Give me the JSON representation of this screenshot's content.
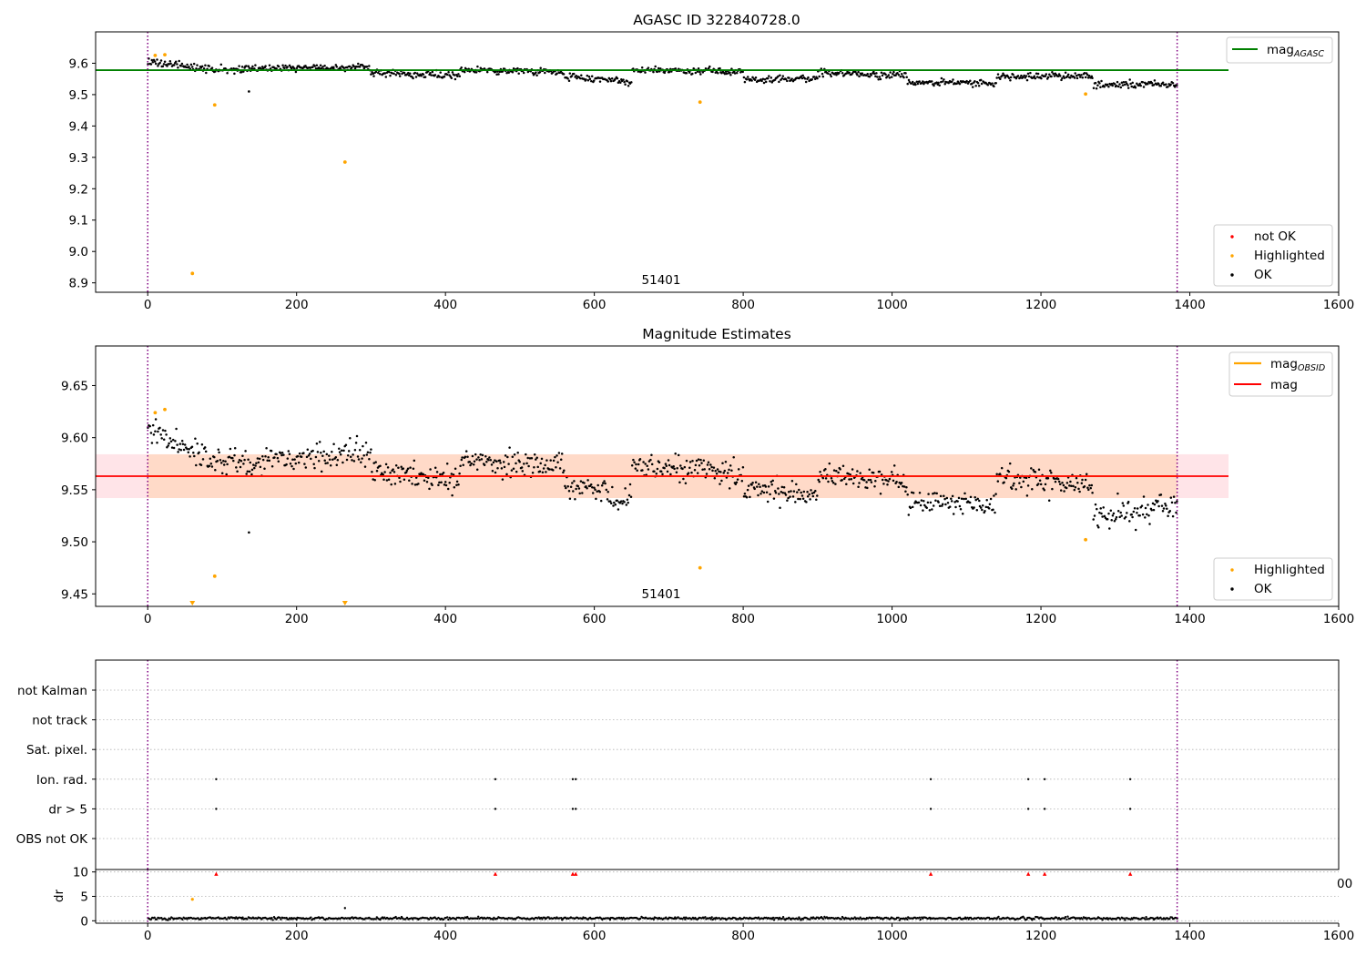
{
  "colors": {
    "ok": "#000000",
    "highlighted": "#ffa500",
    "not_ok": "#ff0000",
    "agasc_line": "#008000",
    "mag_line": "#ff0000",
    "obsid_line": "#ffa500",
    "band_orange": "#ffdac8",
    "band_pink": "#ffe4e8",
    "vline": "#800080",
    "grid": "#b0b0b0"
  },
  "chart_data": [
    {
      "type": "scatter",
      "title": "AGASC ID 322840728.0",
      "xlabel": "",
      "ylabel": "",
      "xlim": [
        -70,
        1600
      ],
      "ylim": [
        8.87,
        9.7
      ],
      "x_ticks": [
        "0",
        "200",
        "400",
        "600",
        "800",
        "1000",
        "1200",
        "1400",
        "1600"
      ],
      "x_tick_values": [
        0,
        200,
        400,
        600,
        800,
        1000,
        1200,
        1400,
        1600
      ],
      "y_ticks": [
        "8.9",
        "9.0",
        "9.1",
        "9.2",
        "9.3",
        "9.4",
        "9.5",
        "9.6"
      ],
      "y_tick_values": [
        8.9,
        9.0,
        9.1,
        9.2,
        9.3,
        9.4,
        9.5,
        9.6
      ],
      "obsid_annotation": "51401",
      "obsid_annotation_x": 690,
      "vertical_lines_x": [
        0,
        1383
      ],
      "lines": [
        {
          "name": "mag_AGASC",
          "label_main": "mag",
          "label_sub": "AGASC",
          "y": 9.578,
          "x_range": [
            -70,
            1452
          ]
        }
      ],
      "legend_upper": [
        {
          "label_main": "mag",
          "label_sub": "AGASC"
        }
      ],
      "legend_lower": [
        "not OK",
        "Highlighted",
        "OK"
      ],
      "ok_series_summary": {
        "x_range": [
          0,
          1383
        ],
        "segments": [
          {
            "x": [
              0,
              20
            ],
            "y": [
              9.61,
              9.6
            ]
          },
          {
            "x": [
              20,
              80
            ],
            "y": [
              9.6,
              9.58
            ]
          },
          {
            "x": [
              80,
              300
            ],
            "y": [
              9.58,
              9.59
            ]
          },
          {
            "x": [
              300,
              420
            ],
            "y": [
              9.57,
              9.56
            ]
          },
          {
            "x": [
              420,
              560
            ],
            "y": [
              9.58,
              9.57
            ]
          },
          {
            "x": [
              560,
              650
            ],
            "y": [
              9.56,
              9.54
            ]
          },
          {
            "x": [
              650,
              800
            ],
            "y": [
              9.58,
              9.57
            ]
          },
          {
            "x": [
              800,
              900
            ],
            "y": [
              9.55,
              9.55
            ]
          },
          {
            "x": [
              900,
              1020
            ],
            "y": [
              9.57,
              9.56
            ]
          },
          {
            "x": [
              1020,
              1140
            ],
            "y": [
              9.54,
              9.535
            ]
          },
          {
            "x": [
              1140,
              1270
            ],
            "y": [
              9.56,
              9.56
            ]
          },
          {
            "x": [
              1270,
              1383
            ],
            "y": [
              9.53,
              9.535
            ]
          }
        ],
        "outliers": [
          {
            "x": 136,
            "y": 9.51
          }
        ]
      },
      "highlighted_points": [
        {
          "x": 10,
          "y": 9.625
        },
        {
          "x": 23,
          "y": 9.627
        },
        {
          "x": 60,
          "y": 8.93
        },
        {
          "x": 90,
          "y": 9.467
        },
        {
          "x": 265,
          "y": 9.285
        },
        {
          "x": 742,
          "y": 9.476
        },
        {
          "x": 1260,
          "y": 9.502
        }
      ]
    },
    {
      "type": "scatter",
      "title": "Magnitude Estimates",
      "xlabel": "",
      "ylabel": "",
      "xlim": [
        -70,
        1600
      ],
      "ylim": [
        9.438,
        9.688
      ],
      "x_ticks": [
        "0",
        "200",
        "400",
        "600",
        "800",
        "1000",
        "1200",
        "1400",
        "1600"
      ],
      "x_tick_values": [
        0,
        200,
        400,
        600,
        800,
        1000,
        1200,
        1400,
        1600
      ],
      "y_ticks": [
        "9.45",
        "9.50",
        "9.55",
        "9.60",
        "9.65"
      ],
      "y_tick_values": [
        9.45,
        9.5,
        9.55,
        9.6,
        9.65
      ],
      "obsid_annotation": "51401",
      "obsid_annotation_x": 690,
      "vertical_lines_x": [
        0,
        1383
      ],
      "mag": 9.563,
      "mag_band": [
        9.542,
        9.584
      ],
      "mag_obsid": 9.563,
      "band_x_range": [
        -70,
        1452
      ],
      "legend_upper": [
        {
          "label_main": "mag",
          "label_sub": "OBSID",
          "color_key": "obsid_line"
        },
        {
          "label_main": "mag",
          "label_sub": "",
          "color_key": "mag_line"
        }
      ],
      "legend_lower": [
        "Highlighted",
        "OK"
      ],
      "ok_series_summary": {
        "x_range": [
          0,
          1383
        ],
        "segments": [
          {
            "x": [
              0,
              20
            ],
            "y": [
              9.61,
              9.6
            ]
          },
          {
            "x": [
              20,
              80
            ],
            "y": [
              9.6,
              9.58
            ]
          },
          {
            "x": [
              80,
              300
            ],
            "y": [
              9.575,
              9.585
            ]
          },
          {
            "x": [
              300,
              420
            ],
            "y": [
              9.565,
              9.56
            ]
          },
          {
            "x": [
              420,
              560
            ],
            "y": [
              9.578,
              9.572
            ]
          },
          {
            "x": [
              560,
              650
            ],
            "y": [
              9.555,
              9.54
            ]
          },
          {
            "x": [
              650,
              800
            ],
            "y": [
              9.575,
              9.565
            ]
          },
          {
            "x": [
              800,
              900
            ],
            "y": [
              9.55,
              9.545
            ]
          },
          {
            "x": [
              900,
              1020
            ],
            "y": [
              9.565,
              9.56
            ]
          },
          {
            "x": [
              1020,
              1140
            ],
            "y": [
              9.54,
              9.535
            ]
          },
          {
            "x": [
              1140,
              1270
            ],
            "y": [
              9.56,
              9.555
            ]
          },
          {
            "x": [
              1270,
              1383
            ],
            "y": [
              9.525,
              9.535
            ]
          }
        ],
        "outliers": [
          {
            "x": 136,
            "y": 9.509
          }
        ]
      },
      "highlighted_points": [
        {
          "x": 10,
          "y": 9.624
        },
        {
          "x": 23,
          "y": 9.627
        },
        {
          "x": 90,
          "y": 9.467
        },
        {
          "x": 742,
          "y": 9.475
        },
        {
          "x": 1260,
          "y": 9.502
        }
      ],
      "highlighted_off_axis_markers_x": [
        60,
        265
      ]
    },
    {
      "type": "scatter",
      "title": "",
      "xlabel": "",
      "ylabel": "",
      "xlim": [
        -70,
        1600
      ],
      "categories": [
        "not Kalman",
        "not track",
        "Sat. pixel.",
        "Ion. rad.",
        "dr > 5",
        "OBS not OK"
      ],
      "vertical_lines_x": [
        0,
        1383
      ],
      "flags": {
        "Ion. rad.": [
          92,
          467,
          571,
          575,
          1052,
          1183,
          1205,
          1320
        ],
        "dr > 5": [
          92,
          467,
          571,
          575,
          1052,
          1183,
          1205,
          1320
        ]
      }
    },
    {
      "type": "scatter",
      "title": "",
      "xlabel": "",
      "ylabel": "dr",
      "xlim": [
        -70,
        1600
      ],
      "ylim": [
        -0.5,
        10.5
      ],
      "x_ticks": [
        "0",
        "200",
        "400",
        "600",
        "800",
        "1000",
        "1200",
        "1400",
        "1600"
      ],
      "x_tick_values": [
        0,
        200,
        400,
        600,
        800,
        1000,
        1200,
        1400,
        1600
      ],
      "y_ticks": [
        "0",
        "5",
        "10"
      ],
      "y_tick_values": [
        0,
        5,
        10
      ],
      "overlapped_tick_fragment": "00",
      "vertical_lines_x": [
        0,
        1383
      ],
      "ok_dr_typical": 0.5,
      "ok_dr_outliers": [
        {
          "x": 265,
          "y": 2.6
        }
      ],
      "highlighted_points": [
        {
          "x": 60,
          "y": 4.4
        }
      ],
      "not_ok_points": [
        {
          "x": 92,
          "y": 9.6
        },
        {
          "x": 467,
          "y": 9.6
        },
        {
          "x": 571,
          "y": 9.6
        },
        {
          "x": 575,
          "y": 9.6
        },
        {
          "x": 1052,
          "y": 9.6
        },
        {
          "x": 1183,
          "y": 9.6
        },
        {
          "x": 1205,
          "y": 9.6
        },
        {
          "x": 1320,
          "y": 9.6
        }
      ]
    }
  ]
}
